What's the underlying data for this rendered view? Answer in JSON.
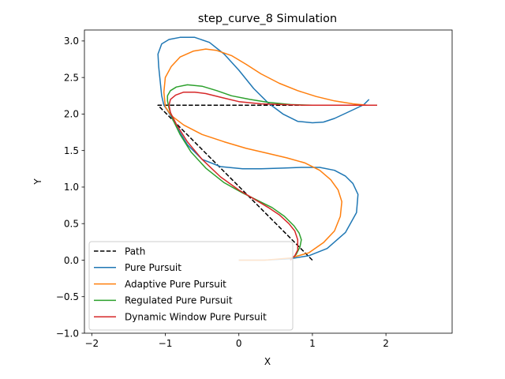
{
  "chart_data": {
    "type": "line",
    "title": "step_curve_8 Simulation",
    "xlabel": "X",
    "ylabel": "Y",
    "xlim": [
      -2.1,
      2.9
    ],
    "ylim": [
      -1.0,
      3.15
    ],
    "xticks": [
      -2,
      -1,
      0,
      1,
      2
    ],
    "yticks": [
      -1.0,
      -0.5,
      0.0,
      0.5,
      1.0,
      1.5,
      2.0,
      2.5,
      3.0
    ],
    "xtick_labels": [
      "−2",
      "−1",
      "0",
      "1",
      "2"
    ],
    "ytick_labels": [
      "−1.0",
      "−0.5",
      "0.0",
      "0.5",
      "1.0",
      "1.5",
      "2.0",
      "2.5",
      "3.0"
    ],
    "grid": false,
    "legend_position": "lower-left",
    "series": [
      {
        "name": "Path",
        "color": "#000000",
        "dash": true,
        "x": [
          1.0,
          -1.1,
          1.8
        ],
        "y": [
          0.0,
          2.12,
          2.12
        ]
      },
      {
        "name": "Pure Pursuit",
        "color": "#1f77b4",
        "dash": false,
        "x": [
          0.0,
          0.35,
          0.7,
          0.95,
          1.2,
          1.45,
          1.6,
          1.62,
          1.55,
          1.45,
          1.3,
          1.1,
          0.85,
          0.6,
          0.3,
          0.05,
          -0.25,
          -0.5,
          -0.7,
          -0.82,
          -0.9,
          -0.97,
          -1.02,
          -1.05,
          -1.07,
          -1.09,
          -1.1,
          -1.05,
          -0.95,
          -0.8,
          -0.6,
          -0.4,
          -0.2,
          0.0,
          0.2,
          0.4,
          0.6,
          0.8,
          1.0,
          1.15,
          1.3,
          1.45,
          1.6,
          1.7,
          1.77
        ],
        "y": [
          0.0,
          0.0,
          0.02,
          0.06,
          0.16,
          0.38,
          0.65,
          0.9,
          1.05,
          1.15,
          1.23,
          1.27,
          1.27,
          1.26,
          1.25,
          1.25,
          1.28,
          1.38,
          1.58,
          1.78,
          1.93,
          2.05,
          2.12,
          2.25,
          2.45,
          2.65,
          2.82,
          2.96,
          3.02,
          3.05,
          3.05,
          2.98,
          2.82,
          2.6,
          2.35,
          2.15,
          2.0,
          1.9,
          1.88,
          1.89,
          1.94,
          2.01,
          2.08,
          2.13,
          2.2
        ]
      },
      {
        "name": "Adaptive Pure Pursuit",
        "color": "#ff7f0e",
        "dash": false,
        "x": [
          0.0,
          0.35,
          0.7,
          0.95,
          1.15,
          1.3,
          1.38,
          1.4,
          1.35,
          1.25,
          1.1,
          0.9,
          0.65,
          0.4,
          0.1,
          -0.2,
          -0.5,
          -0.75,
          -0.92,
          -1.0,
          -1.02,
          -1.0,
          -0.92,
          -0.8,
          -0.62,
          -0.45,
          -0.3,
          -0.1,
          0.1,
          0.3,
          0.55,
          0.8,
          1.05,
          1.3,
          1.55,
          1.75,
          1.88
        ],
        "y": [
          0.0,
          0.0,
          0.03,
          0.1,
          0.24,
          0.4,
          0.6,
          0.8,
          0.96,
          1.1,
          1.23,
          1.33,
          1.4,
          1.46,
          1.53,
          1.62,
          1.72,
          1.85,
          1.98,
          2.1,
          2.3,
          2.5,
          2.65,
          2.78,
          2.86,
          2.89,
          2.87,
          2.8,
          2.68,
          2.55,
          2.42,
          2.32,
          2.24,
          2.18,
          2.14,
          2.12,
          2.12
        ]
      },
      {
        "name": "Regulated Pure Pursuit",
        "color": "#2ca02c",
        "dash": false,
        "x": [
          0.7,
          0.78,
          0.83,
          0.85,
          0.82,
          0.75,
          0.62,
          0.45,
          0.25,
          0.05,
          -0.2,
          -0.45,
          -0.65,
          -0.8,
          -0.9,
          -0.95,
          -0.97,
          -0.97,
          -0.93,
          -0.85,
          -0.7,
          -0.5,
          -0.3,
          -0.1,
          0.15,
          0.4,
          0.7,
          1.0,
          1.3,
          1.6,
          1.88
        ],
        "y": [
          0.0,
          0.08,
          0.18,
          0.28,
          0.37,
          0.47,
          0.6,
          0.72,
          0.82,
          0.92,
          1.06,
          1.26,
          1.48,
          1.72,
          1.93,
          2.08,
          2.18,
          2.25,
          2.32,
          2.37,
          2.4,
          2.38,
          2.32,
          2.25,
          2.2,
          2.16,
          2.13,
          2.12,
          2.12,
          2.12,
          2.12
        ]
      },
      {
        "name": "Dynamic Window Pure Pursuit",
        "color": "#d62728",
        "dash": false,
        "x": [
          0.7,
          0.76,
          0.8,
          0.8,
          0.76,
          0.68,
          0.55,
          0.4,
          0.2,
          0.0,
          -0.25,
          -0.5,
          -0.7,
          -0.85,
          -0.93,
          -0.95,
          -0.93,
          -0.86,
          -0.75,
          -0.6,
          -0.45,
          -0.25,
          0.0,
          0.3,
          0.6,
          0.9,
          1.2,
          1.5,
          1.88
        ],
        "y": [
          0.0,
          0.06,
          0.14,
          0.28,
          0.4,
          0.5,
          0.62,
          0.72,
          0.84,
          0.96,
          1.14,
          1.38,
          1.62,
          1.86,
          2.02,
          2.12,
          2.2,
          2.26,
          2.3,
          2.3,
          2.28,
          2.23,
          2.17,
          2.14,
          2.13,
          2.12,
          2.12,
          2.12,
          2.12
        ]
      }
    ]
  }
}
